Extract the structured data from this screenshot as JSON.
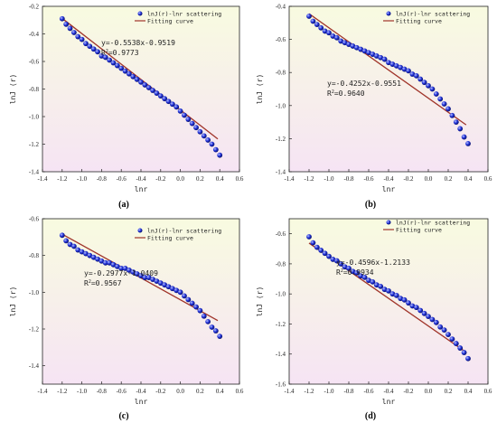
{
  "chart_data": [
    {
      "type": "scatter",
      "panel_label": "(a)",
      "xlabel": "lnr",
      "ylabel": "lnJ (r)",
      "xlim": [
        -1.4,
        0.6
      ],
      "ylim": [
        -1.4,
        -0.2
      ],
      "xticks": [
        "-1.4",
        "-1.2",
        "-1.0",
        "-0.8",
        "-0.6",
        "-0.4",
        "-0.2",
        "0.0",
        "0.2",
        "0.4",
        "0.6"
      ],
      "yticks": [
        "-0.2",
        "-0.4",
        "-0.6",
        "-0.8",
        "-1.0",
        "-1.2",
        "-1.4"
      ],
      "legend": [
        "lnJ(r)-lnr scattering",
        "Fitting curve"
      ],
      "equation": "y=-0.5538x-0.9519",
      "r2_prefix": "R",
      "r2_value": "=0.9773",
      "fit": {
        "slope": -0.5538,
        "intercept": -0.9519,
        "x_start": -1.2,
        "x_end": 0.38
      },
      "series": [
        {
          "name": "lnJ(r)-lnr scattering",
          "x": [
            -1.2,
            -1.16,
            -1.12,
            -1.08,
            -1.04,
            -1.0,
            -0.96,
            -0.92,
            -0.88,
            -0.84,
            -0.8,
            -0.76,
            -0.72,
            -0.68,
            -0.64,
            -0.6,
            -0.56,
            -0.52,
            -0.48,
            -0.44,
            -0.4,
            -0.36,
            -0.32,
            -0.28,
            -0.24,
            -0.2,
            -0.16,
            -0.12,
            -0.08,
            -0.04,
            0.0,
            0.04,
            0.08,
            0.12,
            0.16,
            0.2,
            0.24,
            0.28,
            0.32,
            0.36,
            0.4
          ],
          "y": [
            -0.29,
            -0.33,
            -0.36,
            -0.39,
            -0.42,
            -0.44,
            -0.47,
            -0.49,
            -0.51,
            -0.53,
            -0.56,
            -0.57,
            -0.59,
            -0.61,
            -0.63,
            -0.65,
            -0.67,
            -0.69,
            -0.71,
            -0.73,
            -0.75,
            -0.77,
            -0.79,
            -0.81,
            -0.83,
            -0.85,
            -0.87,
            -0.89,
            -0.91,
            -0.93,
            -0.96,
            -0.99,
            -1.02,
            -1.05,
            -1.08,
            -1.11,
            -1.14,
            -1.17,
            -1.2,
            -1.24,
            -1.28
          ]
        }
      ]
    },
    {
      "type": "scatter",
      "panel_label": "(b)",
      "xlabel": "lnr",
      "ylabel": "lnJ (r)",
      "xlim": [
        -1.4,
        0.6
      ],
      "ylim": [
        -1.4,
        -0.4
      ],
      "xticks": [
        "-1.4",
        "-1.2",
        "-1.0",
        "-0.8",
        "-0.6",
        "-0.4",
        "-0.2",
        "0.0",
        "0.2",
        "0.4",
        "0.6"
      ],
      "yticks": [
        "-0.4",
        "-0.6",
        "-0.8",
        "-1.0",
        "-1.2",
        "-1.4"
      ],
      "legend": [
        "lnJ(r)-lnr scattering",
        "Fitting curve"
      ],
      "equation": "y=-0.4252x-0.9551",
      "r2_prefix": "R",
      "r2_value": "=0.9640",
      "fit": {
        "slope": -0.4252,
        "intercept": -0.9551,
        "x_start": -1.2,
        "x_end": 0.38
      },
      "series": [
        {
          "name": "lnJ(r)-lnr scattering",
          "x": [
            -1.2,
            -1.16,
            -1.12,
            -1.08,
            -1.04,
            -1.0,
            -0.96,
            -0.92,
            -0.88,
            -0.84,
            -0.8,
            -0.76,
            -0.72,
            -0.68,
            -0.64,
            -0.6,
            -0.56,
            -0.52,
            -0.48,
            -0.44,
            -0.4,
            -0.36,
            -0.32,
            -0.28,
            -0.24,
            -0.2,
            -0.16,
            -0.12,
            -0.08,
            -0.04,
            0.0,
            0.04,
            0.08,
            0.12,
            0.16,
            0.2,
            0.24,
            0.28,
            0.32,
            0.36,
            0.4
          ],
          "y": [
            -0.46,
            -0.49,
            -0.51,
            -0.53,
            -0.55,
            -0.56,
            -0.58,
            -0.59,
            -0.61,
            -0.62,
            -0.63,
            -0.64,
            -0.65,
            -0.66,
            -0.67,
            -0.68,
            -0.69,
            -0.7,
            -0.71,
            -0.72,
            -0.74,
            -0.75,
            -0.76,
            -0.77,
            -0.78,
            -0.79,
            -0.81,
            -0.82,
            -0.84,
            -0.86,
            -0.88,
            -0.9,
            -0.93,
            -0.96,
            -0.99,
            -1.02,
            -1.06,
            -1.1,
            -1.14,
            -1.19,
            -1.23
          ]
        }
      ]
    },
    {
      "type": "scatter",
      "panel_label": "(c)",
      "xlabel": "lnr",
      "ylabel": "lnJ (r)",
      "xlim": [
        -1.4,
        0.6
      ],
      "ylim": [
        -1.5,
        -0.6
      ],
      "xticks": [
        "-1.4",
        "-1.2",
        "-1.0",
        "-0.8",
        "-0.6",
        "-0.4",
        "-0.2",
        "0.0",
        "0.2",
        "0.4",
        "0.6"
      ],
      "yticks": [
        "-0.6",
        "-0.8",
        "-1.0",
        "-1.2",
        "-1.4"
      ],
      "legend": [
        "lnJ(r)-lnr scattering",
        "Fitting curve"
      ],
      "equation": "y=-0.2977x-1.0409",
      "r2_prefix": "R",
      "r2_value": "=0.9567",
      "fit": {
        "slope": -0.2977,
        "intercept": -1.0409,
        "x_start": -1.2,
        "x_end": 0.38
      },
      "series": [
        {
          "name": "lnJ(r)-lnr scattering",
          "x": [
            -1.2,
            -1.16,
            -1.12,
            -1.08,
            -1.04,
            -1.0,
            -0.96,
            -0.92,
            -0.88,
            -0.84,
            -0.8,
            -0.76,
            -0.72,
            -0.68,
            -0.64,
            -0.6,
            -0.56,
            -0.52,
            -0.48,
            -0.44,
            -0.4,
            -0.36,
            -0.32,
            -0.28,
            -0.24,
            -0.2,
            -0.16,
            -0.12,
            -0.08,
            -0.04,
            0.0,
            0.04,
            0.08,
            0.12,
            0.16,
            0.2,
            0.24,
            0.28,
            0.32,
            0.36,
            0.4
          ],
          "y": [
            -0.69,
            -0.72,
            -0.74,
            -0.75,
            -0.77,
            -0.78,
            -0.79,
            -0.8,
            -0.81,
            -0.82,
            -0.83,
            -0.84,
            -0.84,
            -0.85,
            -0.86,
            -0.87,
            -0.87,
            -0.88,
            -0.89,
            -0.9,
            -0.91,
            -0.92,
            -0.92,
            -0.93,
            -0.94,
            -0.95,
            -0.96,
            -0.97,
            -0.98,
            -0.99,
            -1.0,
            -1.02,
            -1.04,
            -1.06,
            -1.08,
            -1.1,
            -1.13,
            -1.16,
            -1.19,
            -1.21,
            -1.24
          ]
        }
      ]
    },
    {
      "type": "scatter",
      "panel_label": "(d)",
      "xlabel": "lnr",
      "ylabel": "lnJ (r)",
      "xlim": [
        -1.4,
        0.6
      ],
      "ylim": [
        -1.6,
        -0.5
      ],
      "xticks": [
        "-1.4",
        "-1.2",
        "-1.0",
        "-0.8",
        "-0.6",
        "-0.4",
        "-0.2",
        "0.0",
        "0.2",
        "0.4",
        "0.6"
      ],
      "yticks": [
        "-0.6",
        "-0.8",
        "-1.0",
        "-1.2",
        "-1.4",
        "-1.6"
      ],
      "legend": [
        "lnJ(r)-lnr scattering",
        "Fitting curve"
      ],
      "equation": "y=-0.4596x-1.2133",
      "r2_prefix": "R",
      "r2_value": "=0.9934",
      "fit": {
        "slope": -0.4596,
        "intercept": -1.2133,
        "x_start": -1.2,
        "x_end": 0.38
      },
      "series": [
        {
          "name": "lnJ(r)-lnr scattering",
          "x": [
            -1.2,
            -1.16,
            -1.12,
            -1.08,
            -1.04,
            -1.0,
            -0.96,
            -0.92,
            -0.88,
            -0.84,
            -0.8,
            -0.76,
            -0.72,
            -0.68,
            -0.64,
            -0.6,
            -0.56,
            -0.52,
            -0.48,
            -0.44,
            -0.4,
            -0.36,
            -0.32,
            -0.28,
            -0.24,
            -0.2,
            -0.16,
            -0.12,
            -0.08,
            -0.04,
            0.0,
            0.04,
            0.08,
            0.12,
            0.16,
            0.2,
            0.24,
            0.28,
            0.32,
            0.36,
            0.4
          ],
          "y": [
            -0.62,
            -0.66,
            -0.69,
            -0.71,
            -0.73,
            -0.75,
            -0.77,
            -0.78,
            -0.8,
            -0.82,
            -0.83,
            -0.85,
            -0.86,
            -0.88,
            -0.89,
            -0.91,
            -0.92,
            -0.94,
            -0.95,
            -0.97,
            -0.98,
            -1.0,
            -1.01,
            -1.03,
            -1.04,
            -1.06,
            -1.08,
            -1.09,
            -1.11,
            -1.13,
            -1.15,
            -1.17,
            -1.19,
            -1.22,
            -1.24,
            -1.27,
            -1.3,
            -1.33,
            -1.36,
            -1.39,
            -1.43
          ]
        }
      ]
    }
  ],
  "colors": {
    "marker": "#1f2fd6",
    "marker_highlight": "#b9c3ff",
    "fit_line": "#a0342a",
    "bg_top": "#f8fbe0",
    "bg_bottom": "#f6e4f4"
  }
}
